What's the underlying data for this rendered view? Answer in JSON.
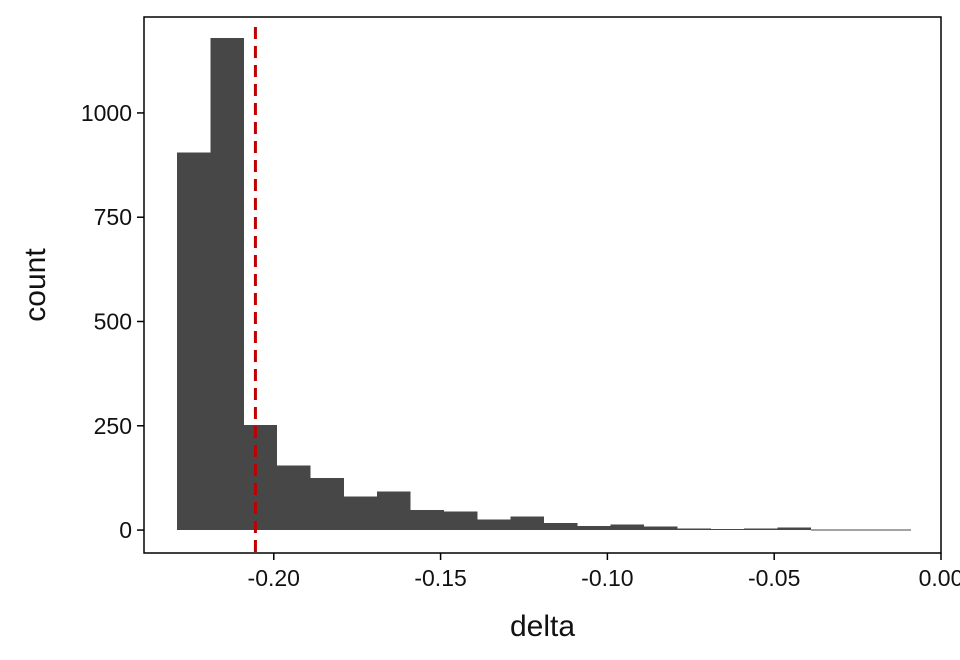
{
  "chart_data": {
    "type": "bar",
    "title": "",
    "xlabel": "delta",
    "ylabel": "count",
    "xlim": [
      -0.2389,
      0.0
    ],
    "ylim": [
      -55,
      1230
    ],
    "x_ticks": [
      -0.2,
      -0.15,
      -0.1,
      -0.05,
      0.0
    ],
    "x_tick_labels": [
      "-0.20",
      "-0.15",
      "-0.10",
      "-0.05",
      "0.00"
    ],
    "y_ticks": [
      0,
      250,
      500,
      750,
      1000
    ],
    "y_tick_labels": [
      "0",
      "250",
      "500",
      "750",
      "1000"
    ],
    "bin_width": 0.01,
    "bins": [
      {
        "x0": -0.229,
        "x1": -0.219,
        "value": 905
      },
      {
        "x0": -0.219,
        "x1": -0.209,
        "value": 1180
      },
      {
        "x0": -0.209,
        "x1": -0.199,
        "value": 252
      },
      {
        "x0": -0.199,
        "x1": -0.189,
        "value": 155
      },
      {
        "x0": -0.189,
        "x1": -0.179,
        "value": 125
      },
      {
        "x0": -0.179,
        "x1": -0.169,
        "value": 80
      },
      {
        "x0": -0.169,
        "x1": -0.159,
        "value": 93
      },
      {
        "x0": -0.159,
        "x1": -0.149,
        "value": 48
      },
      {
        "x0": -0.149,
        "x1": -0.139,
        "value": 45
      },
      {
        "x0": -0.139,
        "x1": -0.129,
        "value": 25
      },
      {
        "x0": -0.129,
        "x1": -0.119,
        "value": 32
      },
      {
        "x0": -0.119,
        "x1": -0.109,
        "value": 17
      },
      {
        "x0": -0.109,
        "x1": -0.099,
        "value": 10
      },
      {
        "x0": -0.099,
        "x1": -0.089,
        "value": 13
      },
      {
        "x0": -0.089,
        "x1": -0.079,
        "value": 9
      },
      {
        "x0": -0.079,
        "x1": -0.069,
        "value": 4
      },
      {
        "x0": -0.069,
        "x1": -0.059,
        "value": 2
      },
      {
        "x0": -0.059,
        "x1": -0.049,
        "value": 4
      },
      {
        "x0": -0.049,
        "x1": -0.039,
        "value": 6
      },
      {
        "x0": -0.039,
        "x1": -0.029,
        "value": 1
      },
      {
        "x0": -0.029,
        "x1": -0.019,
        "value": 1
      },
      {
        "x0": -0.019,
        "x1": -0.009,
        "value": 1
      }
    ],
    "reference_line": {
      "x": -0.2055,
      "style": "dashed"
    },
    "grid": false,
    "legend": "none",
    "colors": {
      "bar": "#474747",
      "reference_line": "#c00000",
      "axis": "#000000",
      "text": "#111111"
    }
  }
}
